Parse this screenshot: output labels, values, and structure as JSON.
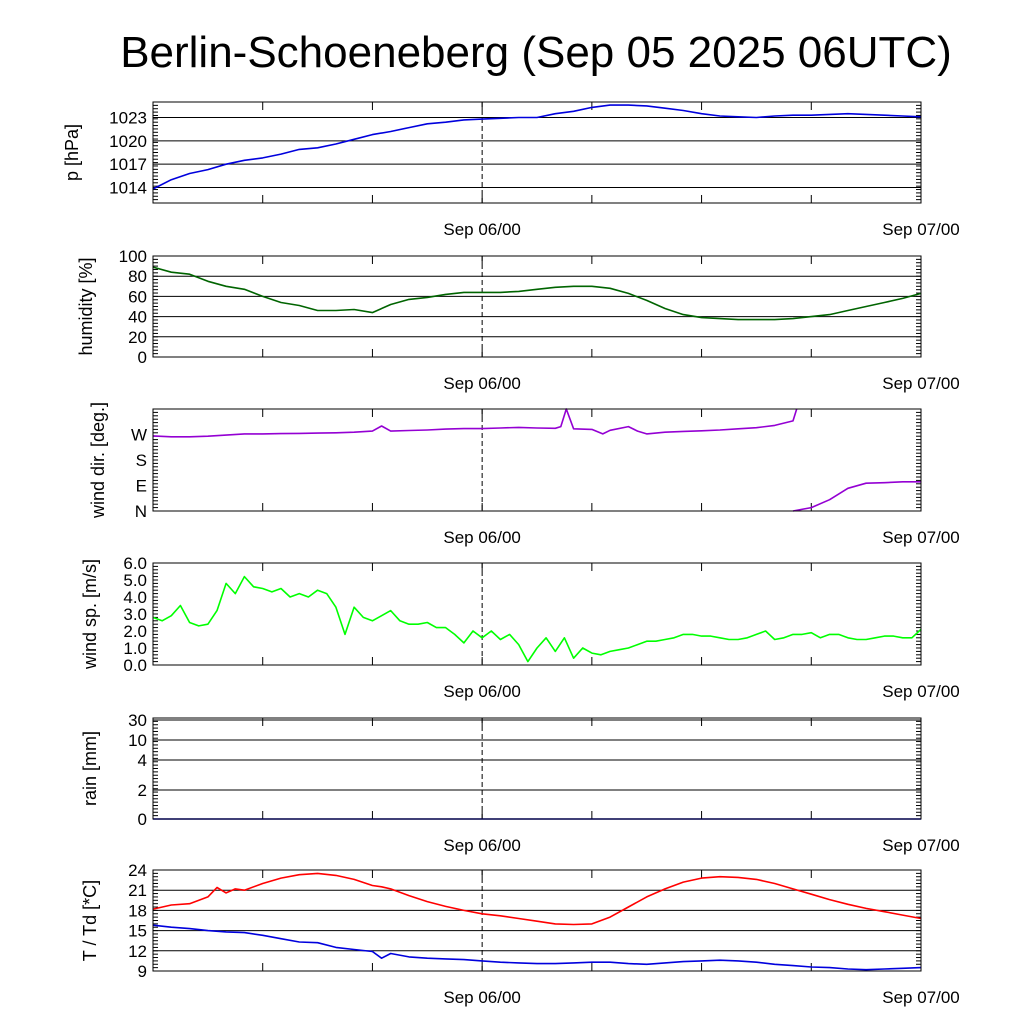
{
  "title": "Berlin-Schoeneberg (Sep 05 2025 06UTC)",
  "colors": {
    "pressure": "#0000dd",
    "humidity": "#006400",
    "wind_dir": "#9400d3",
    "wind_speed": "#00ff00",
    "rain": "#0000dd",
    "temperature": "#ff0000",
    "dewpoint": "#0000dd",
    "grid": "#000000",
    "background": "#ffffff"
  },
  "chart_data": [
    {
      "type": "line",
      "ylabel": "p [hPa]",
      "xlim": [
        0,
        42
      ],
      "x_tick_labels": [
        {
          "x": 18,
          "label": "Sep 06/00"
        },
        {
          "x": 42,
          "label": "Sep 07/00"
        }
      ],
      "ylim": [
        1012,
        1025
      ],
      "yticks": [
        1014,
        1017,
        1020,
        1023
      ],
      "ytick_labels": [
        "1014",
        "1017",
        "1020",
        "1023"
      ],
      "grid": true,
      "series": [
        {
          "x": [
            0,
            1,
            2,
            3,
            4,
            5,
            6,
            7,
            8,
            9,
            10,
            11,
            12,
            13,
            14,
            15,
            16,
            17,
            18,
            19,
            20,
            21,
            22,
            23,
            24,
            25,
            26,
            27,
            28,
            29,
            30,
            31,
            32,
            33,
            34,
            35,
            36,
            37,
            38,
            39,
            40,
            41,
            42
          ],
          "y": [
            1013.8,
            1015.0,
            1015.8,
            1016.3,
            1017.0,
            1017.5,
            1017.8,
            1018.3,
            1018.9,
            1019.1,
            1019.6,
            1020.2,
            1020.8,
            1021.2,
            1021.7,
            1022.2,
            1022.4,
            1022.7,
            1022.8,
            1022.9,
            1023.0,
            1023.0,
            1023.5,
            1023.8,
            1024.3,
            1024.6,
            1024.6,
            1024.5,
            1024.2,
            1023.9,
            1023.5,
            1023.2,
            1023.1,
            1023.0,
            1023.2,
            1023.3,
            1023.3,
            1023.4,
            1023.5,
            1023.4,
            1023.3,
            1023.2,
            1023.1
          ],
          "color": "#0000dd"
        }
      ]
    },
    {
      "type": "line",
      "ylabel": "humidity [%]",
      "xlim": [
        0,
        42
      ],
      "x_tick_labels": [
        {
          "x": 18,
          "label": "Sep 06/00"
        },
        {
          "x": 42,
          "label": "Sep 07/00"
        }
      ],
      "ylim": [
        0,
        100
      ],
      "yticks": [
        0,
        20,
        40,
        60,
        80,
        100
      ],
      "ytick_labels": [
        "0",
        "20",
        "40",
        "60",
        "80",
        "100"
      ],
      "grid": true,
      "series": [
        {
          "x": [
            0,
            1,
            2,
            3,
            4,
            5,
            6,
            7,
            8,
            9,
            10,
            11,
            12,
            13,
            14,
            15,
            16,
            17,
            18,
            19,
            20,
            21,
            22,
            23,
            24,
            25,
            26,
            27,
            28,
            29,
            30,
            31,
            32,
            33,
            34,
            35,
            36,
            37,
            38,
            39,
            40,
            41,
            42
          ],
          "y": [
            89,
            84,
            82,
            75,
            70,
            67,
            60,
            54,
            51,
            46,
            46,
            47,
            44,
            52,
            57,
            59,
            62,
            64,
            64,
            64,
            65,
            67,
            69,
            70,
            70,
            68,
            63,
            56,
            48,
            42,
            39,
            38,
            37,
            37,
            37,
            38,
            40,
            42,
            46,
            50,
            54,
            58,
            63
          ],
          "color": "#006400"
        }
      ]
    },
    {
      "type": "line",
      "ylabel": "wind dir. [deg.]",
      "xlim": [
        0,
        42
      ],
      "x_tick_labels": [
        {
          "x": 18,
          "label": "Sep 06/00"
        },
        {
          "x": 42,
          "label": "Sep 07/00"
        }
      ],
      "ylim": [
        0,
        360
      ],
      "yticks": [
        0,
        90,
        180,
        270
      ],
      "ytick_labels": [
        "N",
        "E",
        "S",
        "W"
      ],
      "grid": false,
      "series": [
        {
          "x": [
            0,
            1,
            2,
            3,
            4,
            5,
            6,
            7,
            8,
            9,
            10,
            11,
            12,
            12.5,
            13,
            14,
            15,
            16,
            17,
            18,
            19,
            20,
            21,
            22,
            22.3,
            22.6,
            23,
            24,
            24.6,
            25,
            26,
            26.5,
            27,
            28,
            29,
            30,
            31,
            32,
            33,
            34,
            35,
            35.2
          ],
          "y": [
            265,
            262,
            262,
            264,
            268,
            272,
            272,
            273,
            274,
            275,
            276,
            278,
            282,
            300,
            282,
            284,
            286,
            289,
            291,
            291,
            293,
            295,
            293,
            292,
            298,
            365,
            290,
            288,
            272,
            285,
            298,
            282,
            272,
            278,
            281,
            283,
            286,
            290,
            294,
            302,
            318,
            360
          ],
          "color": "#9400d3"
        },
        {
          "x": [
            35,
            36,
            37,
            38,
            39,
            40,
            41,
            42
          ],
          "y": [
            0,
            12,
            40,
            80,
            98,
            100,
            103,
            103
          ],
          "color": "#9400d3"
        }
      ]
    },
    {
      "type": "line",
      "ylabel": "wind sp. [m/s]",
      "xlim": [
        0,
        42
      ],
      "x_tick_labels": [
        {
          "x": 18,
          "label": "Sep 06/00"
        },
        {
          "x": 42,
          "label": "Sep 07/00"
        }
      ],
      "ylim": [
        0,
        6
      ],
      "yticks": [
        0,
        1,
        2,
        3,
        4,
        5,
        6
      ],
      "ytick_labels": [
        "0.0",
        "1.0",
        "2.0",
        "3.0",
        "4.0",
        "5.0",
        "6.0"
      ],
      "grid": false,
      "series": [
        {
          "x": [
            0,
            0.5,
            1,
            1.5,
            2,
            2.5,
            3,
            3.5,
            4,
            4.5,
            5,
            5.5,
            6,
            6.5,
            7,
            7.5,
            8,
            8.5,
            9,
            9.5,
            10,
            10.5,
            11,
            11.5,
            12,
            12.5,
            13,
            13.5,
            14,
            14.5,
            15,
            15.5,
            16,
            16.5,
            17,
            17.5,
            18,
            18.5,
            19,
            19.5,
            20,
            20.5,
            21,
            21.5,
            22,
            22.5,
            23,
            23.5,
            24,
            24.5,
            25,
            25.5,
            26,
            26.5,
            27,
            27.5,
            28,
            28.5,
            29,
            29.5,
            30,
            30.5,
            31,
            31.5,
            32,
            32.5,
            33,
            33.5,
            34,
            34.5,
            35,
            35.5,
            36,
            36.5,
            37,
            37.5,
            38,
            38.5,
            39,
            39.5,
            40,
            40.5,
            41,
            41.5,
            42
          ],
          "y": [
            2.8,
            2.6,
            2.9,
            3.5,
            2.5,
            2.3,
            2.4,
            3.2,
            4.8,
            4.2,
            5.2,
            4.6,
            4.5,
            4.3,
            4.5,
            4.0,
            4.2,
            4.0,
            4.4,
            4.2,
            3.4,
            1.8,
            3.4,
            2.8,
            2.6,
            2.9,
            3.2,
            2.6,
            2.4,
            2.4,
            2.5,
            2.2,
            2.2,
            1.8,
            1.3,
            2.0,
            1.6,
            2.0,
            1.5,
            1.8,
            1.2,
            0.2,
            1.0,
            1.6,
            0.8,
            1.6,
            0.4,
            1.0,
            0.7,
            0.6,
            0.8,
            0.9,
            1.0,
            1.2,
            1.4,
            1.4,
            1.5,
            1.6,
            1.8,
            1.8,
            1.7,
            1.7,
            1.6,
            1.5,
            1.5,
            1.6,
            1.8,
            2.0,
            1.5,
            1.6,
            1.8,
            1.8,
            1.9,
            1.6,
            1.8,
            1.8,
            1.6,
            1.5,
            1.5,
            1.6,
            1.7,
            1.7,
            1.6,
            1.6,
            2.1
          ],
          "color": "#00ff00"
        }
      ]
    },
    {
      "type": "line",
      "ylabel": "rain [mm]",
      "xlim": [
        0,
        42
      ],
      "x_tick_labels": [
        {
          "x": 18,
          "label": "Sep 06/00"
        },
        {
          "x": 42,
          "label": "Sep 07/00"
        }
      ],
      "ytick_labels": [
        "0",
        "2",
        "4",
        "10",
        "30"
      ],
      "ytick_values_mm": [
        0,
        2,
        4,
        10,
        30
      ],
      "grid": true,
      "series": [
        {
          "x": [
            0,
            42
          ],
          "y": [
            0,
            0
          ],
          "color": "#0000dd"
        }
      ]
    },
    {
      "type": "line",
      "ylabel": "T / Td [*C]",
      "xlim": [
        0,
        42
      ],
      "x_tick_labels": [
        {
          "x": 18,
          "label": "Sep 06/00"
        },
        {
          "x": 42,
          "label": "Sep 07/00"
        }
      ],
      "ylim": [
        9,
        24
      ],
      "yticks": [
        9,
        12,
        15,
        18,
        21,
        24
      ],
      "ytick_labels": [
        "9",
        "12",
        "15",
        "18",
        "21",
        "24"
      ],
      "grid": true,
      "series": [
        {
          "x": [
            0,
            1,
            2,
            3,
            3.5,
            4,
            4.5,
            5,
            6,
            7,
            8,
            9,
            10,
            11,
            12,
            12.5,
            13,
            14,
            15,
            16,
            17,
            18,
            19,
            20,
            21,
            22,
            23,
            24,
            25,
            26,
            27,
            28,
            29,
            30,
            31,
            32,
            33,
            34,
            35,
            36,
            37,
            38,
            39,
            40,
            41,
            42
          ],
          "y": [
            18.2,
            18.8,
            19.0,
            20.0,
            21.4,
            20.6,
            21.2,
            21.0,
            22.0,
            22.8,
            23.3,
            23.5,
            23.2,
            22.6,
            21.7,
            21.5,
            21.2,
            20.2,
            19.3,
            18.6,
            18.0,
            17.5,
            17.2,
            16.8,
            16.4,
            16.0,
            15.9,
            16.0,
            17.0,
            18.5,
            20.0,
            21.2,
            22.2,
            22.8,
            23.0,
            22.9,
            22.6,
            22.0,
            21.2,
            20.4,
            19.6,
            18.9,
            18.3,
            17.8,
            17.3,
            16.8
          ],
          "color": "#ff0000"
        },
        {
          "x": [
            0,
            1,
            2,
            3,
            4,
            5,
            6,
            7,
            8,
            9,
            10,
            11,
            12,
            12.5,
            13,
            14,
            15,
            16,
            17,
            18,
            19,
            20,
            21,
            22,
            23,
            24,
            25,
            26,
            27,
            28,
            29,
            30,
            31,
            32,
            33,
            34,
            35,
            36,
            37,
            38,
            39,
            40,
            41,
            42
          ],
          "y": [
            15.8,
            15.5,
            15.3,
            15.0,
            14.8,
            14.7,
            14.3,
            13.8,
            13.3,
            13.2,
            12.5,
            12.2,
            11.9,
            10.9,
            11.6,
            11.1,
            10.9,
            10.8,
            10.7,
            10.5,
            10.3,
            10.2,
            10.1,
            10.1,
            10.2,
            10.3,
            10.3,
            10.1,
            10.0,
            10.2,
            10.4,
            10.5,
            10.6,
            10.5,
            10.3,
            10.0,
            9.8,
            9.6,
            9.5,
            9.3,
            9.2,
            9.3,
            9.4,
            9.5
          ],
          "color": "#0000dd"
        }
      ]
    }
  ]
}
